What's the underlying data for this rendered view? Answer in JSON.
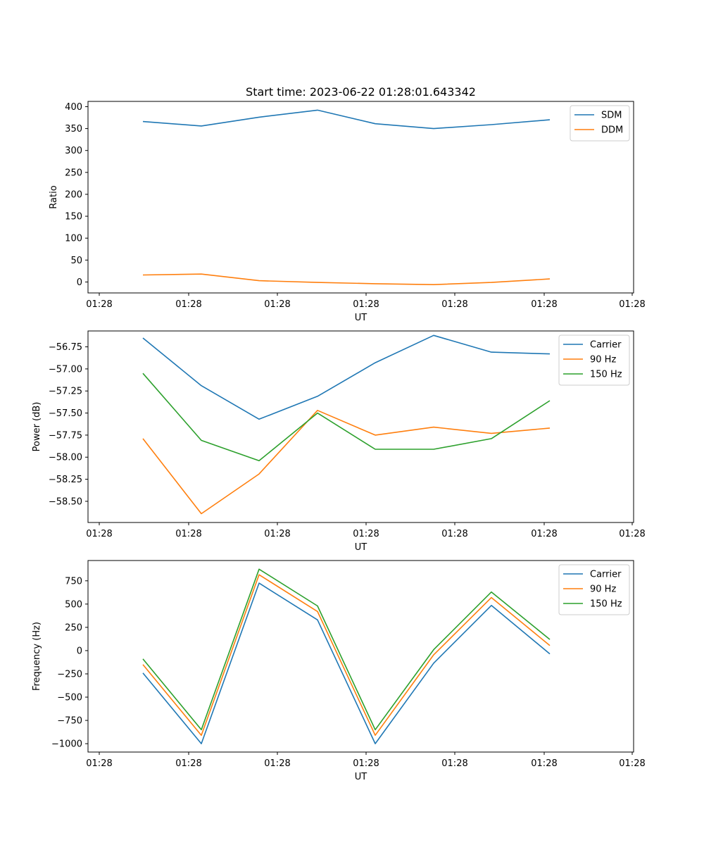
{
  "chart_data": [
    {
      "type": "line",
      "title": "Start time: 2023-06-22 01:28:01.643342",
      "xlabel": "UT",
      "ylabel": "Ratio",
      "xticks": [
        "01:28",
        "01:28",
        "01:28",
        "01:28",
        "01:28",
        "01:28",
        "01:28"
      ],
      "yticks": [
        0,
        50,
        100,
        150,
        200,
        250,
        300,
        350,
        400
      ],
      "ylim": [
        -25,
        412
      ],
      "legend_position": "top-right",
      "grid": false,
      "series": [
        {
          "name": "SDM",
          "color": "#1f77b4",
          "values": [
            366,
            356,
            376,
            392,
            361,
            350,
            359,
            370
          ]
        },
        {
          "name": "DDM",
          "color": "#ff7f0e",
          "values": [
            16,
            18,
            3,
            -1,
            -4,
            -6,
            -1,
            7
          ]
        }
      ]
    },
    {
      "type": "line",
      "title": "",
      "xlabel": "UT",
      "ylabel": "Power (dB)",
      "xticks": [
        "01:28",
        "01:28",
        "01:28",
        "01:28",
        "01:28",
        "01:28",
        "01:28"
      ],
      "yticks": [
        -58.5,
        -58.25,
        -58.0,
        -57.75,
        -57.5,
        -57.25,
        -57.0,
        -56.75
      ],
      "ytick_labels": [
        "−58.50",
        "−58.25",
        "−58.00",
        "−57.75",
        "−57.50",
        "−57.25",
        "−57.00",
        "−56.75"
      ],
      "ylim": [
        -58.74,
        -56.57
      ],
      "legend_position": "top-right",
      "grid": false,
      "series": [
        {
          "name": "Carrier",
          "color": "#1f77b4",
          "values": [
            -56.65,
            -57.19,
            -57.57,
            -57.31,
            -56.93,
            -56.62,
            -56.81,
            -56.83
          ]
        },
        {
          "name": "90 Hz",
          "color": "#ff7f0e",
          "values": [
            -57.79,
            -58.64,
            -58.19,
            -57.47,
            -57.75,
            -57.66,
            -57.73,
            -57.67
          ]
        },
        {
          "name": "150 Hz",
          "color": "#2ca02c",
          "values": [
            -57.05,
            -57.81,
            -58.04,
            -57.5,
            -57.91,
            -57.91,
            -57.79,
            -57.36
          ]
        }
      ]
    },
    {
      "type": "line",
      "title": "",
      "xlabel": "UT",
      "ylabel": "Frequency (Hz)",
      "xticks": [
        "01:28",
        "01:28",
        "01:28",
        "01:28",
        "01:28",
        "01:28",
        "01:28"
      ],
      "yticks": [
        -1000,
        -750,
        -500,
        -250,
        0,
        250,
        500,
        750
      ],
      "ytick_labels": [
        "−1000",
        "−750",
        "−500",
        "−250",
        "0",
        "250",
        "500",
        "750"
      ],
      "ylim": [
        -1090,
        968
      ],
      "legend_position": "top-right",
      "grid": false,
      "series": [
        {
          "name": "Carrier",
          "color": "#1f77b4",
          "values": [
            -240,
            -1000,
            725,
            330,
            -1000,
            -135,
            485,
            -35
          ]
        },
        {
          "name": "90 Hz",
          "color": "#ff7f0e",
          "values": [
            -150,
            -910,
            815,
            420,
            -910,
            -45,
            570,
            55
          ]
        },
        {
          "name": "150 Hz",
          "color": "#2ca02c",
          "values": [
            -90,
            -850,
            875,
            480,
            -850,
            10,
            630,
            120
          ]
        }
      ]
    }
  ]
}
